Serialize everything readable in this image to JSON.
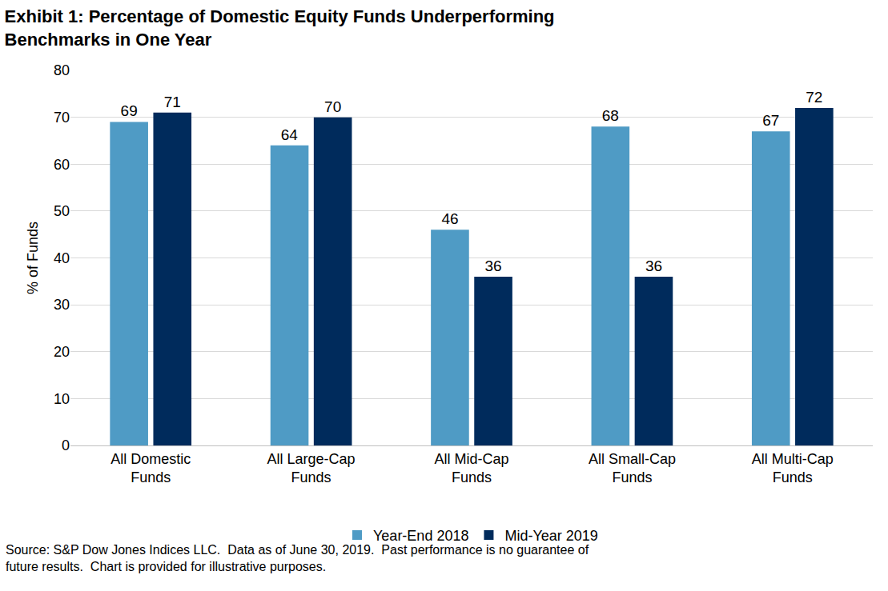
{
  "chart_data": {
    "type": "bar",
    "title": "Exhibit 1: Percentage of Domestic Equity Funds Underperforming\nBenchmarks in One Year",
    "y_label": "% of Funds",
    "categories": [
      "All Domestic\nFunds",
      "All Large-Cap\nFunds",
      "All Mid-Cap\nFunds",
      "All Small-Cap\nFunds",
      "All Multi-Cap\nFunds"
    ],
    "series": [
      {
        "name": "Year-End 2018",
        "color": "#4f9bc5",
        "values": [
          69,
          64,
          46,
          68,
          67
        ]
      },
      {
        "name": "Mid-Year 2019",
        "color": "#002b5c",
        "values": [
          71,
          70,
          36,
          36,
          72
        ]
      }
    ],
    "ylim": [
      0,
      80
    ],
    "yticks": [
      0,
      10,
      20,
      30,
      40,
      50,
      60,
      70,
      80
    ],
    "grid": true,
    "legend": "bottom",
    "data_labels": true,
    "source": "Source: S&P Dow Jones Indices LLC.  Data as of June 30, 2019.  Past performance is no guarantee of\nfuture results.  Chart is provided for illustrative purposes."
  }
}
